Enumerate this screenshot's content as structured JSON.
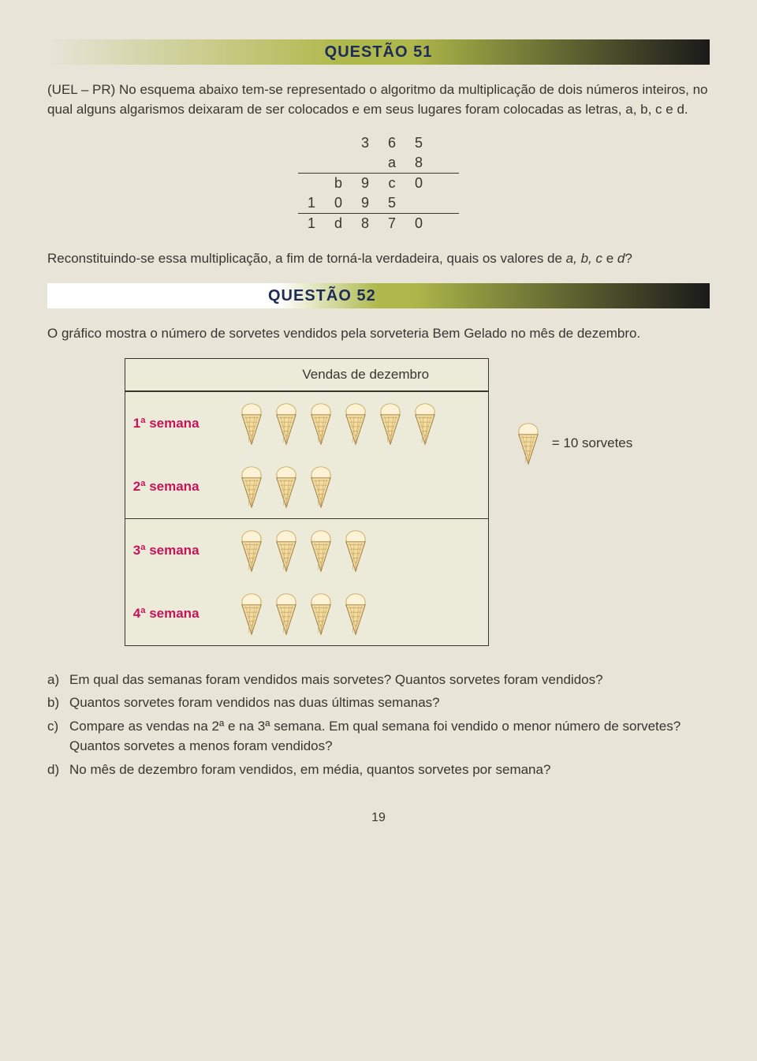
{
  "q51": {
    "header": "QUESTÃO 51",
    "text": "(UEL – PR) No esquema abaixo tem-se representado o algoritmo da multiplicação de dois números inteiros, no qual alguns algarismos deixaram de ser colocados e em seus lugares foram colocadas as letras, a, b, c e d.",
    "table": {
      "r1": [
        "",
        "",
        "3",
        "6",
        "5",
        ""
      ],
      "r2": [
        "",
        "",
        "",
        "a",
        "8",
        ""
      ],
      "r3": [
        "",
        "b",
        "9",
        "c",
        "0",
        ""
      ],
      "r4": [
        "1",
        "0",
        "9",
        "5",
        "",
        ""
      ],
      "r5": [
        "1",
        "d",
        "8",
        "7",
        "0",
        ""
      ]
    },
    "followup": "Reconstituindo-se essa multiplicação, a fim de torná-la verdadeira, quais os valores de a, b, c e d?"
  },
  "q52": {
    "header": "QUESTÃO 52",
    "intro": "O gráfico mostra o número de sorvetes vendidos pela sorveteria Bem Gelado no mês de dezembro.",
    "chart": {
      "title": "Vendas de dezembro",
      "rows": [
        {
          "label": "1ª semana",
          "count": 6
        },
        {
          "label": "2ª semana",
          "count": 3
        },
        {
          "label": "3ª semana",
          "count": 4
        },
        {
          "label": "4ª semana",
          "count": 4
        }
      ],
      "cone_fill": "#f2dca5",
      "cone_stroke": "#9a7a3a",
      "scoop_fill": "#fdf1d6",
      "label_color": "#c4155a"
    },
    "legend": "= 10 sorvetes",
    "questions": {
      "a": "Em qual das semanas foram vendidos mais sorvetes? Quantos sorvetes foram vendidos?",
      "b": "Quantos sorvetes foram vendidos nas duas últimas semanas?",
      "c": "Compare as vendas na 2ª e na 3ª semana. Em qual semana foi vendido o menor número de sorvetes? Quantos sorvetes a menos foram vendidos?",
      "d": "No mês de dezembro foram vendidos, em média, quantos sorvetes por semana?"
    }
  },
  "page_number": "19"
}
